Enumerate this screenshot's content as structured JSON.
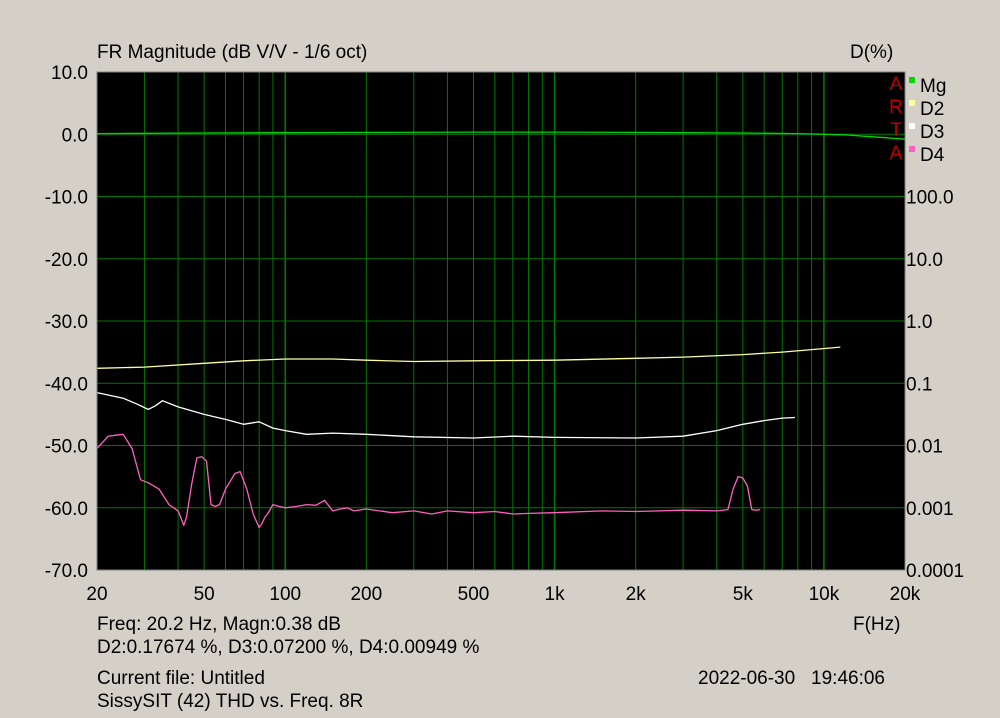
{
  "chart_data": {
    "type": "line",
    "title": "FR Magnitude (dB V/V - 1/6 oct)",
    "ylabel_right": "D(%)",
    "xlabel": "F(Hz)",
    "x_scale": "log",
    "xlim": [
      20,
      20000
    ],
    "ylim": [
      -70,
      10
    ],
    "y2_scale": "log",
    "y2lim": [
      0.0001,
      100
    ],
    "grid": true,
    "legend_placement": "top-right",
    "watermark": "ARTA",
    "x_ticks": [
      {
        "value": 20,
        "label": "20"
      },
      {
        "value": 50,
        "label": "50"
      },
      {
        "value": 100,
        "label": "100"
      },
      {
        "value": 200,
        "label": "200"
      },
      {
        "value": 500,
        "label": "500"
      },
      {
        "value": 1000,
        "label": "1k"
      },
      {
        "value": 2000,
        "label": "2k"
      },
      {
        "value": 5000,
        "label": "5k"
      },
      {
        "value": 10000,
        "label": "10k"
      },
      {
        "value": 20000,
        "label": "20k"
      }
    ],
    "y_ticks": [
      {
        "value": 10,
        "label": "10.0"
      },
      {
        "value": 0,
        "label": "0.0"
      },
      {
        "value": -10,
        "label": "-10.0"
      },
      {
        "value": -20,
        "label": "-20.0"
      },
      {
        "value": -30,
        "label": "-30.0"
      },
      {
        "value": -40,
        "label": "-40.0"
      },
      {
        "value": -50,
        "label": "-50.0"
      },
      {
        "value": -60,
        "label": "-60.0"
      },
      {
        "value": -70,
        "label": "-70.0"
      }
    ],
    "y2_ticks": [
      {
        "value": 100,
        "label": "100.0"
      },
      {
        "value": 10,
        "label": "10.0"
      },
      {
        "value": 1,
        "label": "1.0"
      },
      {
        "value": 0.1,
        "label": "0.1"
      },
      {
        "value": 0.01,
        "label": "0.01"
      },
      {
        "value": 0.001,
        "label": "0.001"
      },
      {
        "value": 0.0001,
        "label": "0.0001"
      }
    ],
    "series": [
      {
        "name": "Mg",
        "color": "#00d800",
        "x": [
          20,
          50,
          100,
          200,
          500,
          1000,
          2000,
          5000,
          8000,
          10000,
          12000,
          15000,
          20000
        ],
        "y": [
          0.1,
          0.2,
          0.25,
          0.3,
          0.35,
          0.35,
          0.3,
          0.2,
          0.1,
          0.0,
          -0.1,
          -0.4,
          -0.8
        ]
      },
      {
        "name": "D2",
        "color": "#ffffa0",
        "x": [
          20,
          30,
          50,
          70,
          100,
          150,
          200,
          300,
          500,
          1000,
          2000,
          3000,
          5000,
          7000,
          9000,
          11500
        ],
        "y": [
          -37.6,
          -37.4,
          -36.8,
          -36.4,
          -36.1,
          -36.1,
          -36.3,
          -36.5,
          -36.4,
          -36.3,
          -36.0,
          -35.8,
          -35.4,
          -35.0,
          -34.6,
          -34.2
        ]
      },
      {
        "name": "D3",
        "color": "#ffffff",
        "x": [
          20,
          25,
          28,
          31,
          33,
          35,
          40,
          50,
          60,
          70,
          80,
          90,
          100,
          120,
          150,
          200,
          300,
          500,
          700,
          1000,
          2000,
          3000,
          4000,
          5000,
          6000,
          7000,
          7800
        ],
        "y": [
          -41.5,
          -42.4,
          -43.3,
          -44.2,
          -43.6,
          -42.8,
          -43.8,
          -45.0,
          -45.8,
          -46.6,
          -46.2,
          -47.2,
          -47.6,
          -48.2,
          -48.0,
          -48.2,
          -48.6,
          -48.8,
          -48.5,
          -48.7,
          -48.8,
          -48.5,
          -47.6,
          -46.6,
          -46.0,
          -45.6,
          -45.5
        ]
      },
      {
        "name": "D4",
        "color": "#ff60c0",
        "x": [
          20,
          22,
          25,
          27,
          29,
          31,
          34,
          37,
          40,
          42,
          43,
          45,
          47,
          49,
          51,
          53,
          55,
          57,
          60,
          65,
          68,
          72,
          76,
          80,
          82,
          84,
          86,
          90,
          95,
          100,
          110,
          120,
          130,
          140,
          150,
          160,
          170,
          180,
          200,
          250,
          300,
          350,
          400,
          500,
          600,
          700,
          800,
          1000,
          1500,
          2000,
          3000,
          4000,
          4400,
          4600,
          4800,
          5000,
          5200,
          5400,
          5600,
          5800
        ],
        "y": [
          -50.5,
          -48.5,
          -48.2,
          -50.5,
          -55.5,
          -56.0,
          -57.0,
          -59.5,
          -60.5,
          -62.8,
          -61.5,
          -56.0,
          -52.0,
          -51.8,
          -52.5,
          -59.5,
          -59.8,
          -59.5,
          -57.0,
          -54.5,
          -54.2,
          -57.0,
          -61.0,
          -63.2,
          -62.5,
          -61.5,
          -61.0,
          -59.5,
          -59.8,
          -60.0,
          -59.8,
          -59.5,
          -59.6,
          -58.8,
          -60.5,
          -60.2,
          -60.0,
          -60.5,
          -60.2,
          -60.8,
          -60.5,
          -61.0,
          -60.5,
          -60.8,
          -60.6,
          -61.0,
          -60.9,
          -60.8,
          -60.5,
          -60.6,
          -60.4,
          -60.5,
          -60.3,
          -57.0,
          -55.0,
          -55.2,
          -56.5,
          -60.3,
          -60.4,
          -60.3
        ]
      }
    ]
  },
  "readout": {
    "line1": "Freq: 20.2 Hz, Magn:0.38 dB",
    "line2": "D2:0.17674 %, D3:0.07200 %, D4:0.00949 %"
  },
  "footer": {
    "current_file": "Current file: Untitled",
    "description": "SissySIT (42) THD vs. Freq. 8R",
    "timestamp": "2022-06-30   19:46:06"
  },
  "colors": {
    "background": "#d4d0c8",
    "plot_bg": "#000000",
    "grid": "#007800",
    "watermark": "#c00000"
  }
}
